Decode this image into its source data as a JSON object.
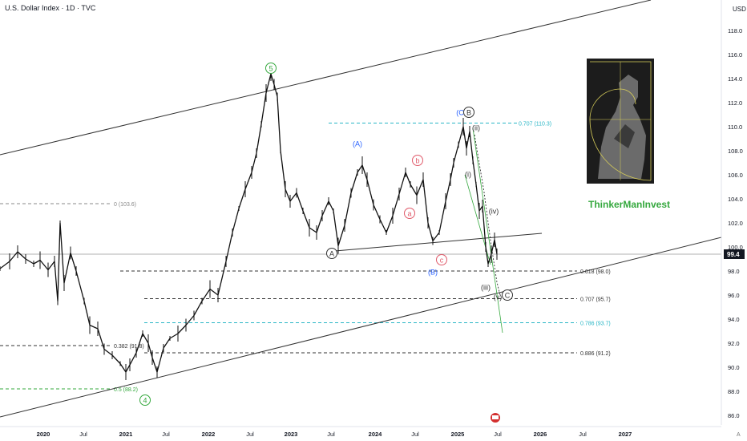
{
  "header": {
    "title": "U.S. Dollar Index · 1D · TVC"
  },
  "currency": "USD",
  "brand": "ThinkerManInvest",
  "chart_data": {
    "type": "line",
    "price_label": "99.4",
    "y_ticks": [
      "118.0",
      "116.0",
      "114.0",
      "112.0",
      "110.0",
      "108.0",
      "106.0",
      "104.0",
      "102.0",
      "100.0",
      "98.0",
      "96.0",
      "94.0",
      "92.0",
      "90.0",
      "88.0",
      "86.0"
    ],
    "x_ticks": [
      "2020",
      "Jul",
      "2021",
      "Jul",
      "2022",
      "Jul",
      "2023",
      "Jul",
      "2024",
      "Jul",
      "2025",
      "Jul",
      "2026",
      "Jul",
      "2027"
    ],
    "series": [
      {
        "values": [
          [
            0,
            98.2
          ],
          [
            12,
            98.8
          ],
          [
            22,
            99.6
          ],
          [
            32,
            99.0
          ],
          [
            42,
            98.6
          ],
          [
            50,
            98.9
          ],
          [
            60,
            98.1
          ],
          [
            68,
            98.8
          ],
          [
            72,
            95.5
          ],
          [
            75,
            102.0
          ],
          [
            80,
            97.0
          ],
          [
            88,
            99.5
          ],
          [
            95,
            98.0
          ],
          [
            105,
            95.5
          ],
          [
            112,
            93.5
          ],
          [
            122,
            93.2
          ],
          [
            130,
            91.5
          ],
          [
            140,
            91.0
          ],
          [
            150,
            90.3
          ],
          [
            157,
            89.6
          ],
          [
            162,
            90.2
          ],
          [
            170,
            91.2
          ],
          [
            178,
            92.8
          ],
          [
            185,
            92.0
          ],
          [
            190,
            90.8
          ],
          [
            196,
            89.6
          ],
          [
            204,
            91.6
          ],
          [
            212,
            92.4
          ],
          [
            222,
            92.8
          ],
          [
            232,
            93.5
          ],
          [
            242,
            94.3
          ],
          [
            252,
            95.5
          ],
          [
            262,
            96.5
          ],
          [
            272,
            96.0
          ],
          [
            282,
            98.8
          ],
          [
            290,
            101.2
          ],
          [
            298,
            103.2
          ],
          [
            306,
            104.8
          ],
          [
            314,
            106.2
          ],
          [
            320,
            107.8
          ],
          [
            326,
            110.2
          ],
          [
            332,
            112.8
          ],
          [
            338,
            114.4
          ],
          [
            342,
            113.5
          ],
          [
            346,
            112.5
          ],
          [
            350,
            108.0
          ],
          [
            356,
            104.8
          ],
          [
            362,
            103.8
          ],
          [
            370,
            104.5
          ],
          [
            378,
            103.0
          ],
          [
            386,
            101.6
          ],
          [
            395,
            101.2
          ],
          [
            402,
            102.6
          ],
          [
            410,
            103.8
          ],
          [
            416,
            103.0
          ],
          [
            422,
            100.1
          ],
          [
            430,
            101.8
          ],
          [
            438,
            104.5
          ],
          [
            446,
            106.2
          ],
          [
            452,
            106.8
          ],
          [
            458,
            105.6
          ],
          [
            466,
            103.5
          ],
          [
            474,
            102.3
          ],
          [
            482,
            101.2
          ],
          [
            490,
            102.6
          ],
          [
            498,
            104.4
          ],
          [
            506,
            106.2
          ],
          [
            512,
            105.2
          ],
          [
            520,
            104.3
          ],
          [
            528,
            105.6
          ],
          [
            534,
            102.0
          ],
          [
            540,
            100.5
          ],
          [
            548,
            101.2
          ],
          [
            556,
            103.8
          ],
          [
            562,
            105.6
          ],
          [
            566,
            107.0
          ],
          [
            572,
            108.5
          ],
          [
            578,
            110.0
          ],
          [
            582,
            108.2
          ],
          [
            586,
            109.6
          ],
          [
            590,
            107.2
          ],
          [
            594,
            105.2
          ],
          [
            598,
            103.0
          ],
          [
            602,
            103.4
          ],
          [
            606,
            100.0
          ],
          [
            609,
            98.6
          ],
          [
            613,
            99.4
          ],
          [
            617,
            100.6
          ],
          [
            620,
            99.4
          ]
        ]
      }
    ],
    "price_axis": {
      "min": 85.0,
      "max": 119.0
    },
    "channel_lines": [],
    "annotations": {
      "waves": [
        "5",
        "4",
        "A",
        "B",
        "C",
        "(A)",
        "(B)",
        "(C",
        "a",
        "b",
        "c",
        "(i)",
        "(ii)",
        "(iii)",
        "(iv)",
        "(v)"
      ],
      "fib_levels": [
        {
          "label": "0 (103.6)",
          "value": 103.6
        },
        {
          "label": "0.707 (110.3)",
          "value": 110.3
        },
        {
          "label": "0.618 (98.0)",
          "value": 98.0
        },
        {
          "label": "0.707 (95.7)",
          "value": 95.7
        },
        {
          "label": "0.786 (93.7)",
          "value": 93.7
        },
        {
          "label": "0.886 (91.2)",
          "value": 91.2
        },
        {
          "label": "0.382 (91.8)",
          "value": 91.8
        },
        {
          "label": "0.5 (88.2)",
          "value": 88.2
        }
      ]
    }
  }
}
